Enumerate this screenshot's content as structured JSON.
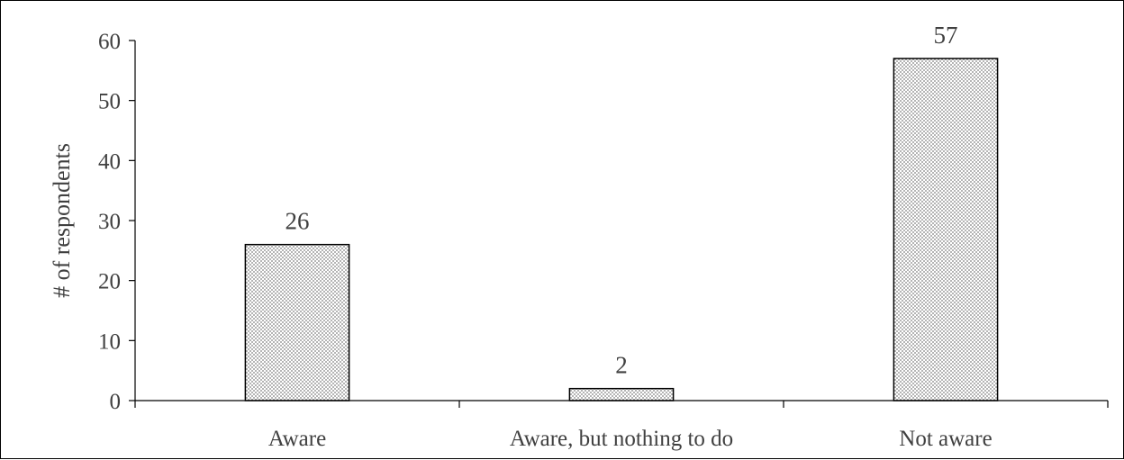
{
  "chart_data": {
    "type": "bar",
    "categories": [
      "Aware",
      "Aware, but nothing to do",
      "Not aware"
    ],
    "values": [
      26,
      2,
      57
    ],
    "data_labels": [
      "26",
      "2",
      "57"
    ],
    "title": "",
    "xlabel": "",
    "ylabel": "# of respondents",
    "ylim": [
      0,
      60
    ],
    "yticks": [
      0,
      10,
      20,
      30,
      40,
      50,
      60
    ],
    "grid": false,
    "legend": "none",
    "bar_fill": "dotted pattern",
    "colors": {
      "bar_stroke": "#000000",
      "bar_dots": "#7f7f7f",
      "axis": "#000000",
      "text": "#404040"
    }
  }
}
